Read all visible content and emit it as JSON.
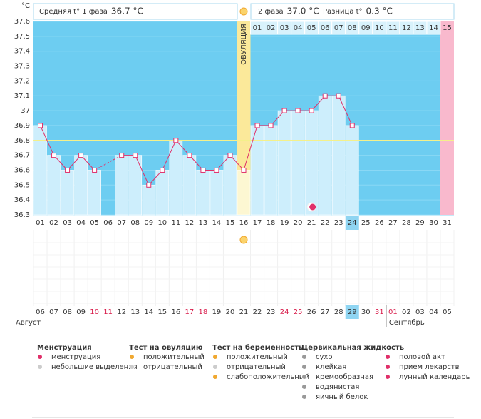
{
  "y_unit": "°C",
  "header": {
    "phase1_label": "Средняя t° 1 фаза",
    "phase1_value": "36.7 °C",
    "phase2_label": "2 фаза",
    "phase2_value": "37.0 °C",
    "diff_label": "Разница t°",
    "diff_value": "0.3 °C"
  },
  "chart_data": {
    "type": "line",
    "categories": [
      "01",
      "02",
      "03",
      "04",
      "05",
      "06",
      "07",
      "08",
      "09",
      "10",
      "11",
      "12",
      "13",
      "14",
      "15",
      "16",
      "17",
      "18",
      "19",
      "20",
      "21",
      "22",
      "23",
      "24",
      "25",
      "26",
      "27",
      "28",
      "29",
      "30",
      "31"
    ],
    "series": [
      {
        "color": "#e0306a",
        "values": [
          36.9,
          36.7,
          36.6,
          36.7,
          36.6,
          null,
          36.7,
          36.7,
          36.5,
          36.6,
          36.8,
          36.7,
          36.6,
          36.6,
          36.7,
          36.6,
          36.9,
          36.9,
          37.0,
          37.0,
          37.0,
          37.1,
          37.1,
          36.9,
          null,
          null,
          null,
          null,
          null,
          null,
          null
        ]
      }
    ],
    "ylim": [
      36.3,
      37.6
    ],
    "yticks": [
      37.6,
      37.5,
      37.4,
      37.3,
      37.2,
      37.1,
      37,
      36.9,
      36.8,
      36.7,
      36.6,
      36.5,
      36.4,
      36.3
    ],
    "grid": true,
    "coverline": 36.8,
    "coverline_color": "#f4f08a",
    "ovulation": {
      "day": "16",
      "label": "ОВУЛЯЦИЯ",
      "color": "#fbe99a"
    },
    "phase2_days": [
      "01",
      "02",
      "03",
      "04",
      "05",
      "06",
      "07",
      "08",
      "09",
      "10",
      "11",
      "12",
      "13",
      "14",
      "15"
    ],
    "menstruation_days": [
      "31"
    ],
    "menstruation_color": "#f9b9cd",
    "today": "24",
    "moon_day": "21",
    "dates": [
      "06",
      "07",
      "08",
      "09",
      "10",
      "11",
      "12",
      "13",
      "14",
      "15",
      "16",
      "17",
      "18",
      "19",
      "20",
      "21",
      "22",
      "23",
      "24",
      "25",
      "26",
      "27",
      "28",
      "29",
      "30",
      "31",
      "01",
      "02",
      "03",
      "04",
      "05"
    ],
    "weekend": [
      false,
      false,
      false,
      false,
      true,
      true,
      false,
      false,
      false,
      false,
      false,
      true,
      true,
      false,
      false,
      false,
      false,
      false,
      true,
      true,
      false,
      false,
      false,
      false,
      false,
      true,
      true,
      false,
      false,
      false,
      false
    ],
    "months": [
      "Август",
      "Сентябрь"
    ]
  },
  "legend": [
    {
      "title": "Менструация",
      "items": [
        "менструация",
        "небольшие выделения"
      ]
    },
    {
      "title": "Тест на овуляцию",
      "items": [
        "положительный",
        "отрицательный"
      ]
    },
    {
      "title": "Тест на беременность",
      "items": [
        "положительный",
        "отрицательный",
        "слабоположительный"
      ]
    },
    {
      "title": "Цервикальная жидкость",
      "items": [
        "сухо",
        "клейкая",
        "кремообразная",
        "водянистая",
        "яичный белок"
      ]
    },
    {
      "items": [
        "половой акт",
        "прием лекарств",
        "лунный календарь"
      ]
    }
  ]
}
